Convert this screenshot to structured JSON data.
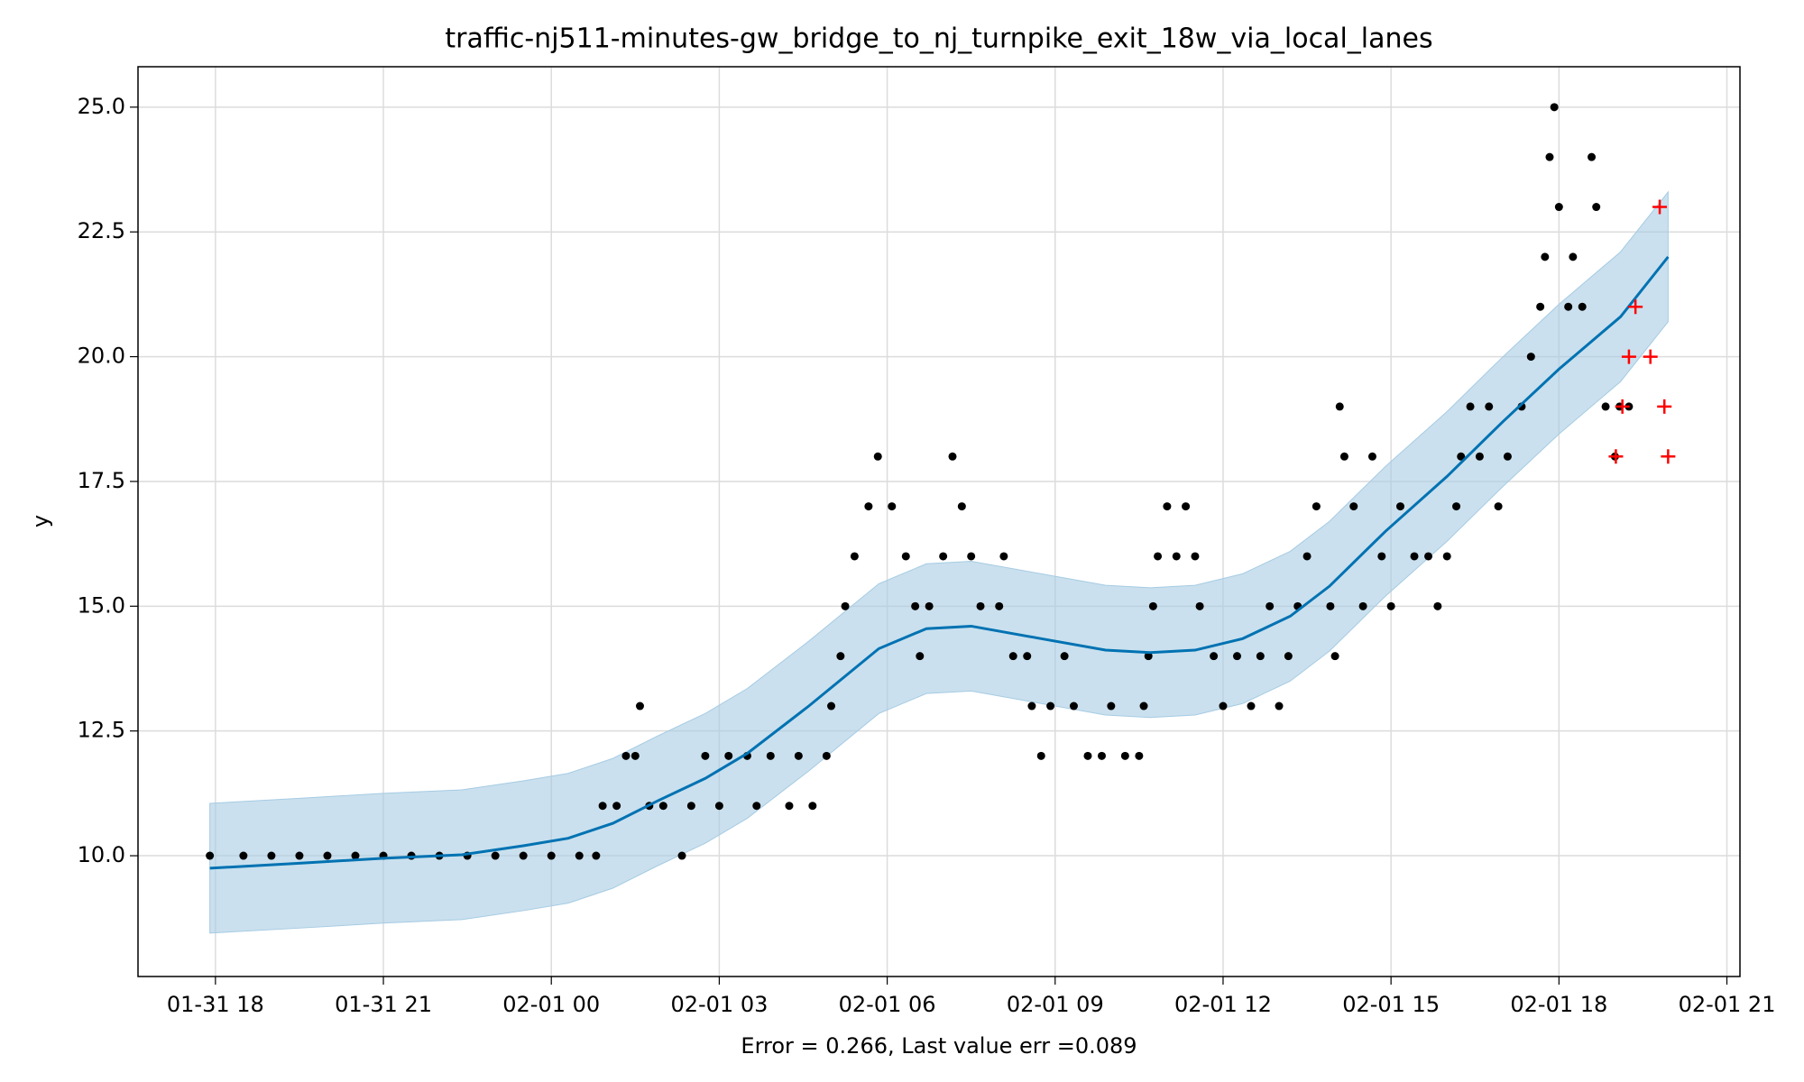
{
  "chart_data": {
    "type": "forecast",
    "title": "traffic-nj511-minutes-gw_bridge_to_nj_turnpike_exit_18w_via_local_lanes",
    "xlabel": "Error = 0.266, Last value err =0.089",
    "ylabel": "y",
    "xlim": [
      "01-31 16:37",
      "02-01 21:14"
    ],
    "ylim": [
      7.58,
      25.81
    ],
    "xticks": [
      {
        "value": "01-31 18:00",
        "label": "01-31 18"
      },
      {
        "value": "01-31 21:00",
        "label": "01-31 21"
      },
      {
        "value": "02-01 00:00",
        "label": "02-01 00"
      },
      {
        "value": "02-01 03:00",
        "label": "02-01 03"
      },
      {
        "value": "02-01 06:00",
        "label": "02-01 06"
      },
      {
        "value": "02-01 09:00",
        "label": "02-01 09"
      },
      {
        "value": "02-01 12:00",
        "label": "02-01 12"
      },
      {
        "value": "02-01 15:00",
        "label": "02-01 15"
      },
      {
        "value": "02-01 18:00",
        "label": "02-01 18"
      },
      {
        "value": "02-01 21:00",
        "label": "02-01 21"
      }
    ],
    "yticks": [
      {
        "value": 10,
        "label": "10.0"
      },
      12.5,
      {
        "value": 15,
        "label": "15.0"
      },
      17.5,
      {
        "value": 20,
        "label": "20.0"
      },
      22.5,
      {
        "value": 25,
        "label": "25.0"
      }
    ],
    "grid": true,
    "forecast": {
      "color": "#0072b2",
      "band_color": "#a6cbe3",
      "x": [
        "01-31 17:54",
        "01-31 19:30",
        "01-31 21:00",
        "01-31 22:24",
        "01-31 23:30",
        "02-01 00:18",
        "02-01 01:06",
        "02-01 01:54",
        "02-01 02:45",
        "02-01 03:30",
        "02-01 04:36",
        "02-01 05:51",
        "02-01 06:42",
        "02-01 07:30",
        "02-01 08:45",
        "02-01 09:54",
        "02-01 10:42",
        "02-01 11:30",
        "02-01 12:21",
        "02-01 13:12",
        "02-01 13:54",
        "02-01 14:54",
        "02-01 16:00",
        "02-01 17:00",
        "02-01 18:00",
        "02-01 19:06",
        "02-01 19:57"
      ],
      "values": [
        9.75,
        9.85,
        9.95,
        10.02,
        10.2,
        10.35,
        10.65,
        11.1,
        11.55,
        12.05,
        13.0,
        14.15,
        14.55,
        14.6,
        14.35,
        14.12,
        14.07,
        14.12,
        14.35,
        14.8,
        15.4,
        16.5,
        17.6,
        18.7,
        19.75,
        20.8,
        22.0
      ],
      "upper": [
        11.05,
        11.15,
        11.25,
        11.32,
        11.5,
        11.65,
        11.95,
        12.4,
        12.85,
        13.35,
        14.3,
        15.45,
        15.85,
        15.9,
        15.65,
        15.42,
        15.37,
        15.42,
        15.65,
        16.1,
        16.7,
        17.8,
        18.9,
        20.0,
        21.05,
        22.1,
        23.3
      ],
      "lower": [
        8.45,
        8.55,
        8.65,
        8.72,
        8.9,
        9.05,
        9.35,
        9.8,
        10.25,
        10.75,
        11.7,
        12.85,
        13.25,
        13.3,
        13.05,
        12.82,
        12.77,
        12.82,
        13.05,
        13.5,
        14.1,
        15.2,
        16.3,
        17.4,
        18.45,
        19.5,
        20.7
      ]
    },
    "observed": {
      "color": "#000000",
      "x": [
        "01-31 17:54",
        "01-31 18:30",
        "01-31 19:00",
        "01-31 19:30",
        "01-31 20:00",
        "01-31 20:30",
        "01-31 21:00",
        "01-31 21:30",
        "01-31 22:00",
        "01-31 22:30",
        "01-31 23:00",
        "01-31 23:30",
        "02-01 00:00",
        "02-01 00:30",
        "02-01 00:48",
        "02-01 00:55",
        "02-01 01:10",
        "02-01 01:20",
        "02-01 01:30",
        "02-01 01:35",
        "02-01 01:45",
        "02-01 02:00",
        "02-01 02:20",
        "02-01 02:30",
        "02-01 02:45",
        "02-01 03:00",
        "02-01 03:10",
        "02-01 03:30",
        "02-01 03:40",
        "02-01 03:55",
        "02-01 04:15",
        "02-01 04:25",
        "02-01 04:40",
        "02-01 04:55",
        "02-01 05:00",
        "02-01 05:10",
        "02-01 05:15",
        "02-01 05:25",
        "02-01 05:40",
        "02-01 05:50",
        "02-01 06:05",
        "02-01 06:20",
        "02-01 06:30",
        "02-01 06:35",
        "02-01 06:45",
        "02-01 07:00",
        "02-01 07:10",
        "02-01 07:20",
        "02-01 07:30",
        "02-01 07:40",
        "02-01 08:00",
        "02-01 08:05",
        "02-01 08:15",
        "02-01 08:30",
        "02-01 08:35",
        "02-01 08:45",
        "02-01 08:55",
        "02-01 09:10",
        "02-01 09:20",
        "02-01 09:35",
        "02-01 09:50",
        "02-01 10:00",
        "02-01 10:15",
        "02-01 10:30",
        "02-01 10:35",
        "02-01 10:40",
        "02-01 10:45",
        "02-01 10:50",
        "02-01 11:00",
        "02-01 11:10",
        "02-01 11:20",
        "02-01 11:30",
        "02-01 11:35",
        "02-01 11:50",
        "02-01 12:00",
        "02-01 12:15",
        "02-01 12:30",
        "02-01 12:40",
        "02-01 12:50",
        "02-01 13:00",
        "02-01 13:10",
        "02-01 13:20",
        "02-01 13:30",
        "02-01 13:40",
        "02-01 13:55",
        "02-01 14:00",
        "02-01 14:05",
        "02-01 14:10",
        "02-01 14:20",
        "02-01 14:30",
        "02-01 14:40",
        "02-01 14:50",
        "02-01 15:00",
        "02-01 15:10",
        "02-01 15:25",
        "02-01 15:40",
        "02-01 15:50",
        "02-01 16:00",
        "02-01 16:10",
        "02-01 16:15",
        "02-01 16:25",
        "02-01 16:35",
        "02-01 16:45",
        "02-01 16:55",
        "02-01 17:05",
        "02-01 17:20",
        "02-01 17:30",
        "02-01 17:40",
        "02-01 17:45",
        "02-01 17:50",
        "02-01 17:55",
        "02-01 18:00",
        "02-01 18:10",
        "02-01 18:15",
        "02-01 18:25",
        "02-01 18:35",
        "02-01 18:40",
        "02-01 18:50",
        "02-01 19:00",
        "02-01 19:05",
        "02-01 19:15"
      ],
      "values": [
        10,
        10,
        10,
        10,
        10,
        10,
        10,
        10,
        10,
        10,
        10,
        10,
        10,
        10,
        10,
        11,
        11,
        12,
        12,
        13,
        11,
        11,
        10,
        11,
        12,
        11,
        12,
        12,
        11,
        12,
        11,
        12,
        11,
        12,
        13,
        14,
        15,
        16,
        17,
        18,
        17,
        16,
        15,
        14,
        15,
        16,
        18,
        17,
        16,
        15,
        15,
        16,
        14,
        14,
        13,
        12,
        13,
        14,
        13,
        12,
        12,
        13,
        12,
        12,
        13,
        14,
        15,
        16,
        17,
        16,
        17,
        16,
        15,
        14,
        13,
        14,
        13,
        14,
        15,
        13,
        14,
        15,
        16,
        17,
        15,
        14,
        19,
        18,
        17,
        15,
        18,
        16,
        15,
        17,
        16,
        16,
        15,
        16,
        17,
        18,
        19,
        18,
        19,
        17,
        18,
        19,
        20,
        21,
        22,
        24,
        25,
        23,
        21,
        22,
        21,
        24,
        23,
        19,
        18,
        19,
        19
      ]
    },
    "actual": {
      "color": "#ff0000",
      "x": [
        "02-01 19:01",
        "02-01 19:08",
        "02-01 19:15",
        "02-01 19:22",
        "02-01 19:38",
        "02-01 19:48",
        "02-01 19:53",
        "02-01 19:57"
      ],
      "values": [
        18,
        19,
        20,
        21,
        20,
        23,
        19,
        18
      ]
    }
  }
}
